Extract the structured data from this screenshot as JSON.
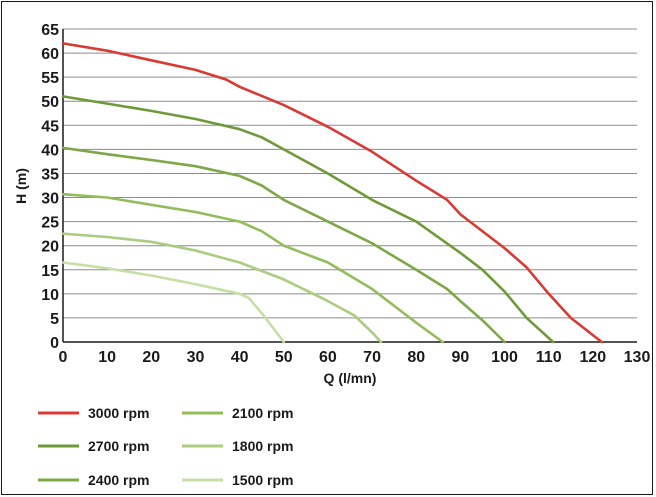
{
  "chart_data": {
    "type": "line",
    "xlabel": "Q (l/mn)",
    "ylabel": "H (m)",
    "xlim": [
      0,
      130
    ],
    "ylim": [
      0,
      65
    ],
    "x_ticks": [
      0,
      10,
      20,
      30,
      40,
      50,
      60,
      70,
      80,
      90,
      100,
      110,
      120,
      130
    ],
    "y_ticks": [
      0,
      5,
      10,
      15,
      20,
      25,
      30,
      35,
      40,
      45,
      50,
      55,
      60,
      65
    ],
    "grid": "horizontal",
    "legend_position": "bottom",
    "series": [
      {
        "name": "3000 rpm",
        "color": "#d83a34",
        "points": [
          [
            0,
            62
          ],
          [
            10,
            60.5
          ],
          [
            20,
            58.5
          ],
          [
            30,
            56.5
          ],
          [
            37,
            54.5
          ],
          [
            40,
            53
          ],
          [
            50,
            49.2
          ],
          [
            60,
            44.7
          ],
          [
            70,
            39.5
          ],
          [
            80,
            33.5
          ],
          [
            87,
            29.5
          ],
          [
            90,
            26.5
          ],
          [
            100,
            19.5
          ],
          [
            105,
            15.5
          ],
          [
            110,
            10
          ],
          [
            115,
            5
          ],
          [
            122,
            0
          ]
        ]
      },
      {
        "name": "2700 rpm",
        "color": "#6f9a3a",
        "points": [
          [
            0,
            51
          ],
          [
            10,
            49.5
          ],
          [
            20,
            48
          ],
          [
            30,
            46.3
          ],
          [
            40,
            44.2
          ],
          [
            45,
            42.5
          ],
          [
            50,
            40
          ],
          [
            60,
            35
          ],
          [
            70,
            29.5
          ],
          [
            80,
            25
          ],
          [
            90,
            18.5
          ],
          [
            95,
            15
          ],
          [
            100,
            10.5
          ],
          [
            105,
            5
          ],
          [
            111,
            0
          ]
        ]
      },
      {
        "name": "2400 rpm",
        "color": "#7ea847",
        "points": [
          [
            0,
            40.3
          ],
          [
            10,
            39
          ],
          [
            20,
            37.8
          ],
          [
            30,
            36.5
          ],
          [
            40,
            34.5
          ],
          [
            45,
            32.5
          ],
          [
            50,
            29.5
          ],
          [
            60,
            25
          ],
          [
            70,
            20.5
          ],
          [
            80,
            15
          ],
          [
            87,
            11
          ],
          [
            90,
            8.5
          ],
          [
            95,
            4.5
          ],
          [
            100,
            0
          ]
        ]
      },
      {
        "name": "2100 rpm",
        "color": "#93bd5a",
        "points": [
          [
            0,
            30.7
          ],
          [
            10,
            30
          ],
          [
            20,
            28.5
          ],
          [
            30,
            27
          ],
          [
            40,
            25
          ],
          [
            45,
            23
          ],
          [
            50,
            20
          ],
          [
            60,
            16.5
          ],
          [
            70,
            11
          ],
          [
            75,
            7.5
          ],
          [
            80,
            4
          ],
          [
            86,
            0
          ]
        ]
      },
      {
        "name": "1800 rpm",
        "color": "#aacd80",
        "points": [
          [
            0,
            22.5
          ],
          [
            10,
            21.8
          ],
          [
            20,
            20.8
          ],
          [
            30,
            19
          ],
          [
            40,
            16.5
          ],
          [
            50,
            13
          ],
          [
            60,
            8.5
          ],
          [
            66,
            5.5
          ],
          [
            70,
            2
          ],
          [
            72,
            0
          ]
        ]
      },
      {
        "name": "1500 rpm",
        "color": "#c6dfa6",
        "points": [
          [
            0,
            16.5
          ],
          [
            10,
            15.3
          ],
          [
            20,
            13.8
          ],
          [
            30,
            12
          ],
          [
            40,
            10
          ],
          [
            42,
            9.2
          ],
          [
            45,
            6
          ],
          [
            50,
            0
          ]
        ]
      }
    ]
  }
}
